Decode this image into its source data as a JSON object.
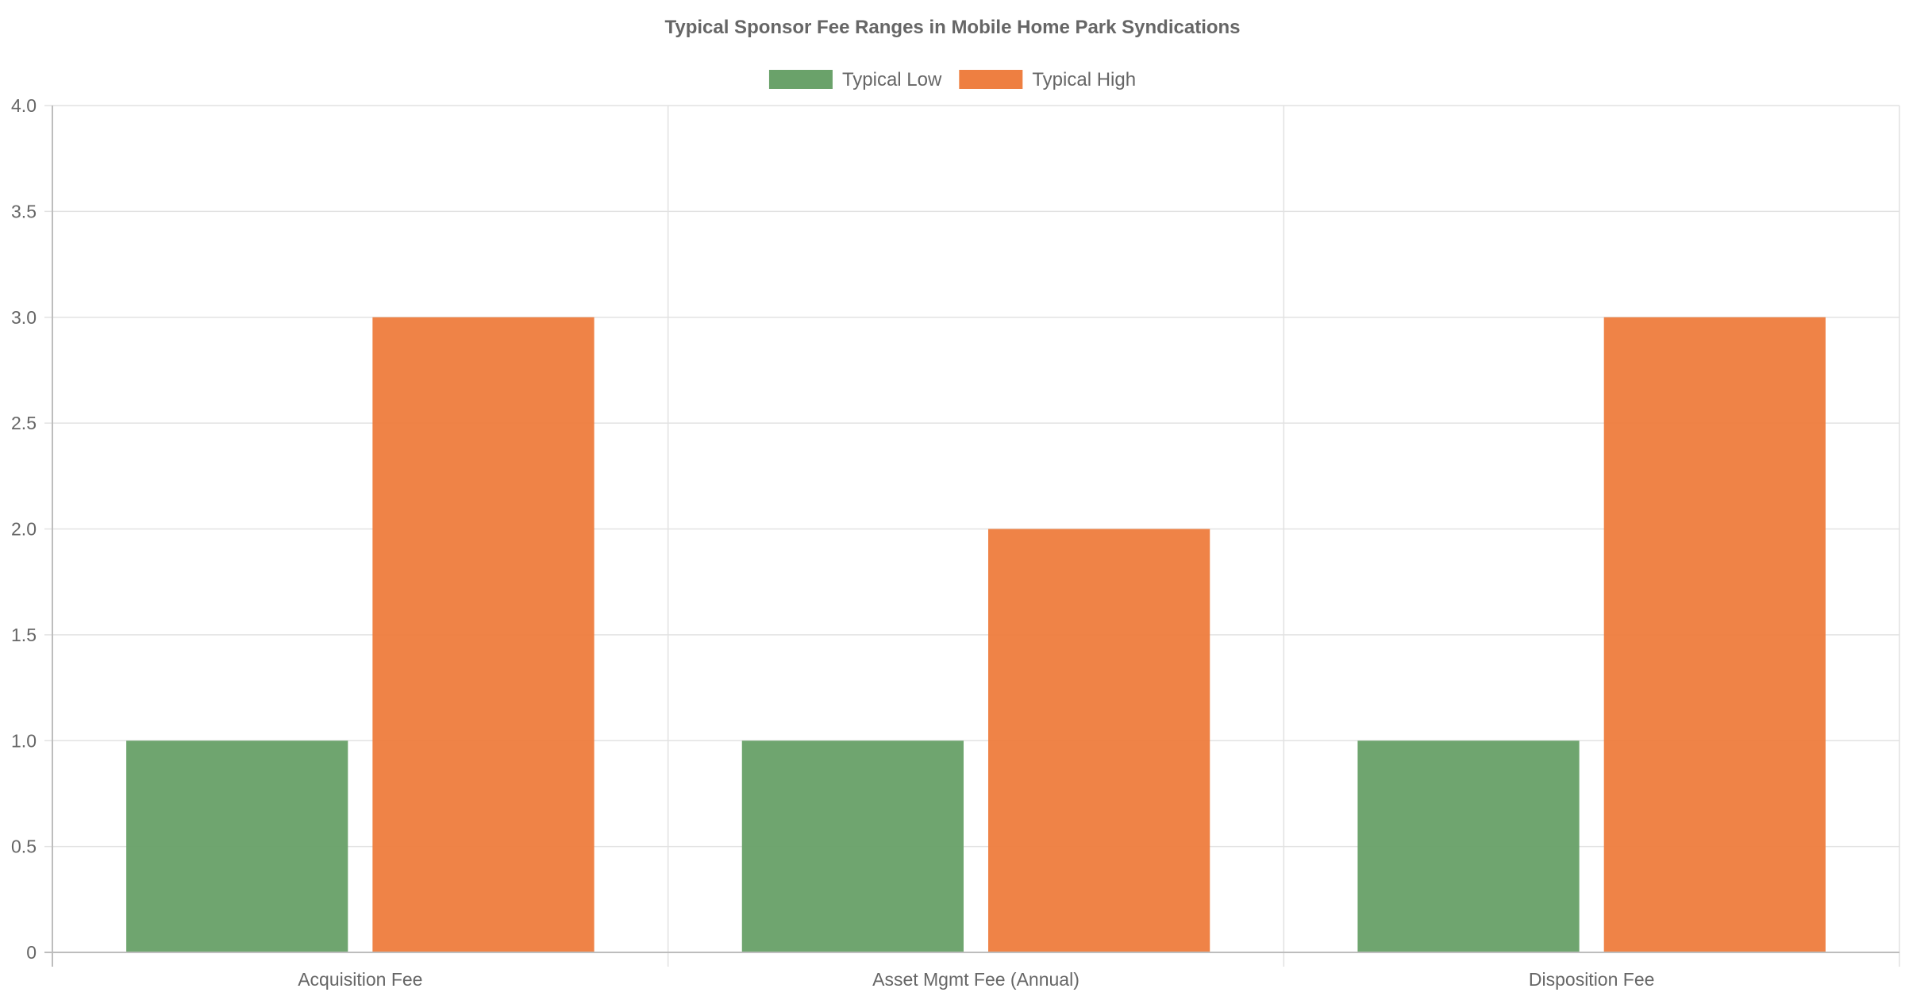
{
  "chart_data": {
    "type": "bar",
    "title": "Typical Sponsor Fee Ranges in Mobile Home Park Syndications",
    "xlabel": "",
    "ylabel": "",
    "categories": [
      "Acquisition Fee",
      "Asset Mgmt Fee (Annual)",
      "Disposition Fee"
    ],
    "series": [
      {
        "name": "Typical Low",
        "values": [
          1,
          1,
          1
        ],
        "color": "#6aa26a"
      },
      {
        "name": "Typical High",
        "values": [
          3,
          2,
          3
        ],
        "color": "#ee7f41"
      }
    ],
    "ylim": [
      0,
      4
    ],
    "yticks": [
      0,
      0.5,
      1,
      1.5,
      2,
      2.5,
      3,
      3.5,
      4
    ],
    "ytick_labels": [
      "0",
      "0.5",
      "1.0",
      "1.5",
      "2.0",
      "2.5",
      "3.0",
      "3.5",
      "4.0"
    ],
    "grid": true,
    "legend_position": "top-center"
  }
}
